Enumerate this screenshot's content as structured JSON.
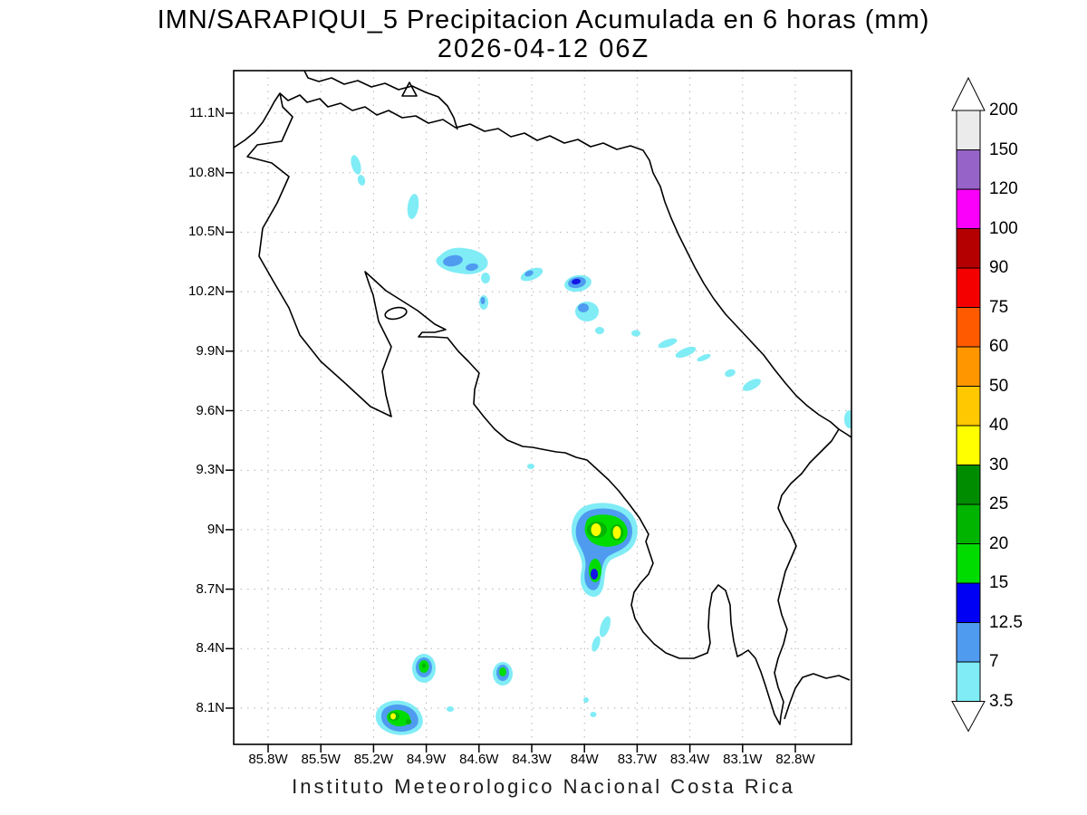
{
  "title": {
    "line1": "IMN/SARAPIQUI_5 Precipitacion Acumulada en 6 horas (mm)",
    "line2": "2026-04-12 06Z"
  },
  "footer": {
    "caption": "Instituto Meteorologico Nacional Costa Rica"
  },
  "map": {
    "region": "Costa Rica",
    "lat_ticks": [
      "11.1N",
      "10.8N",
      "10.5N",
      "10.2N",
      "9.9N",
      "9.6N",
      "9.3N",
      "9N",
      "8.7N",
      "8.4N",
      "8.1N"
    ],
    "lon_ticks": [
      "85.8W",
      "85.5W",
      "85.2W",
      "84.9W",
      "84.6W",
      "84.3W",
      "84W",
      "83.7W",
      "83.4W",
      "83.1W",
      "82.8W"
    ]
  },
  "colorbar": {
    "units": "mm",
    "levels_top_to_bottom": [
      "200",
      "150",
      "120",
      "100",
      "90",
      "75",
      "60",
      "50",
      "40",
      "30",
      "25",
      "20",
      "15",
      "12.5",
      "7",
      "3.5"
    ],
    "segment_colors_top_to_bottom": [
      "#EBEBEB",
      "#9664C8",
      "#FA00FA",
      "#B40000",
      "#F50000",
      "#FF5A00",
      "#FF9600",
      "#FFC800",
      "#FFFF00",
      "#008C00",
      "#00B400",
      "#00DC00",
      "#0000F5",
      "#4F9BF0",
      "#80ECF5"
    ],
    "arrow_color": "#FFFFFF"
  },
  "precipitation_cells": [
    {
      "approx_lon": "85.3W",
      "approx_lat": "10.85N",
      "max_band_mm": "3.5-7"
    },
    {
      "approx_lon": "85.0W",
      "approx_lat": "10.6N",
      "max_band_mm": "3.5-7"
    },
    {
      "approx_lon": "84.75W",
      "approx_lat": "10.35N",
      "max_band_mm": "7-12.5"
    },
    {
      "approx_lon": "84.6W",
      "approx_lat": "10.15N",
      "max_band_mm": "7-12.5"
    },
    {
      "approx_lon": "84.3W",
      "approx_lat": "10.3N",
      "max_band_mm": "7-12.5"
    },
    {
      "approx_lon": "84.05W",
      "approx_lat": "10.25N",
      "max_band_mm": "12.5-15"
    },
    {
      "approx_lon": "84.0W",
      "approx_lat": "10.1N",
      "max_band_mm": "7-12.5"
    },
    {
      "approx_lon": "83.5W",
      "approx_lat": "9.95N",
      "max_band_mm": "3.5-7"
    },
    {
      "approx_lon": "83.05W",
      "approx_lat": "9.85N",
      "max_band_mm": "3.5-7"
    },
    {
      "approx_lon": "82.5W",
      "approx_lat": "9.55N",
      "max_band_mm": "3.5-7"
    },
    {
      "approx_lon": "83.95W",
      "approx_lat": "9.0N",
      "max_band_mm": "30-40"
    },
    {
      "approx_lon": "83.95W",
      "approx_lat": "8.85N",
      "max_band_mm": "12.5-15"
    },
    {
      "approx_lon": "83.8W",
      "approx_lat": "8.55N",
      "max_band_mm": "3.5-7"
    },
    {
      "approx_lon": "84.9W",
      "approx_lat": "8.35N",
      "max_band_mm": "20-25"
    },
    {
      "approx_lon": "84.45W",
      "approx_lat": "8.35N",
      "max_band_mm": "15-20"
    },
    {
      "approx_lon": "85.1W",
      "approx_lat": "8.1N",
      "max_band_mm": "30-40"
    }
  ]
}
